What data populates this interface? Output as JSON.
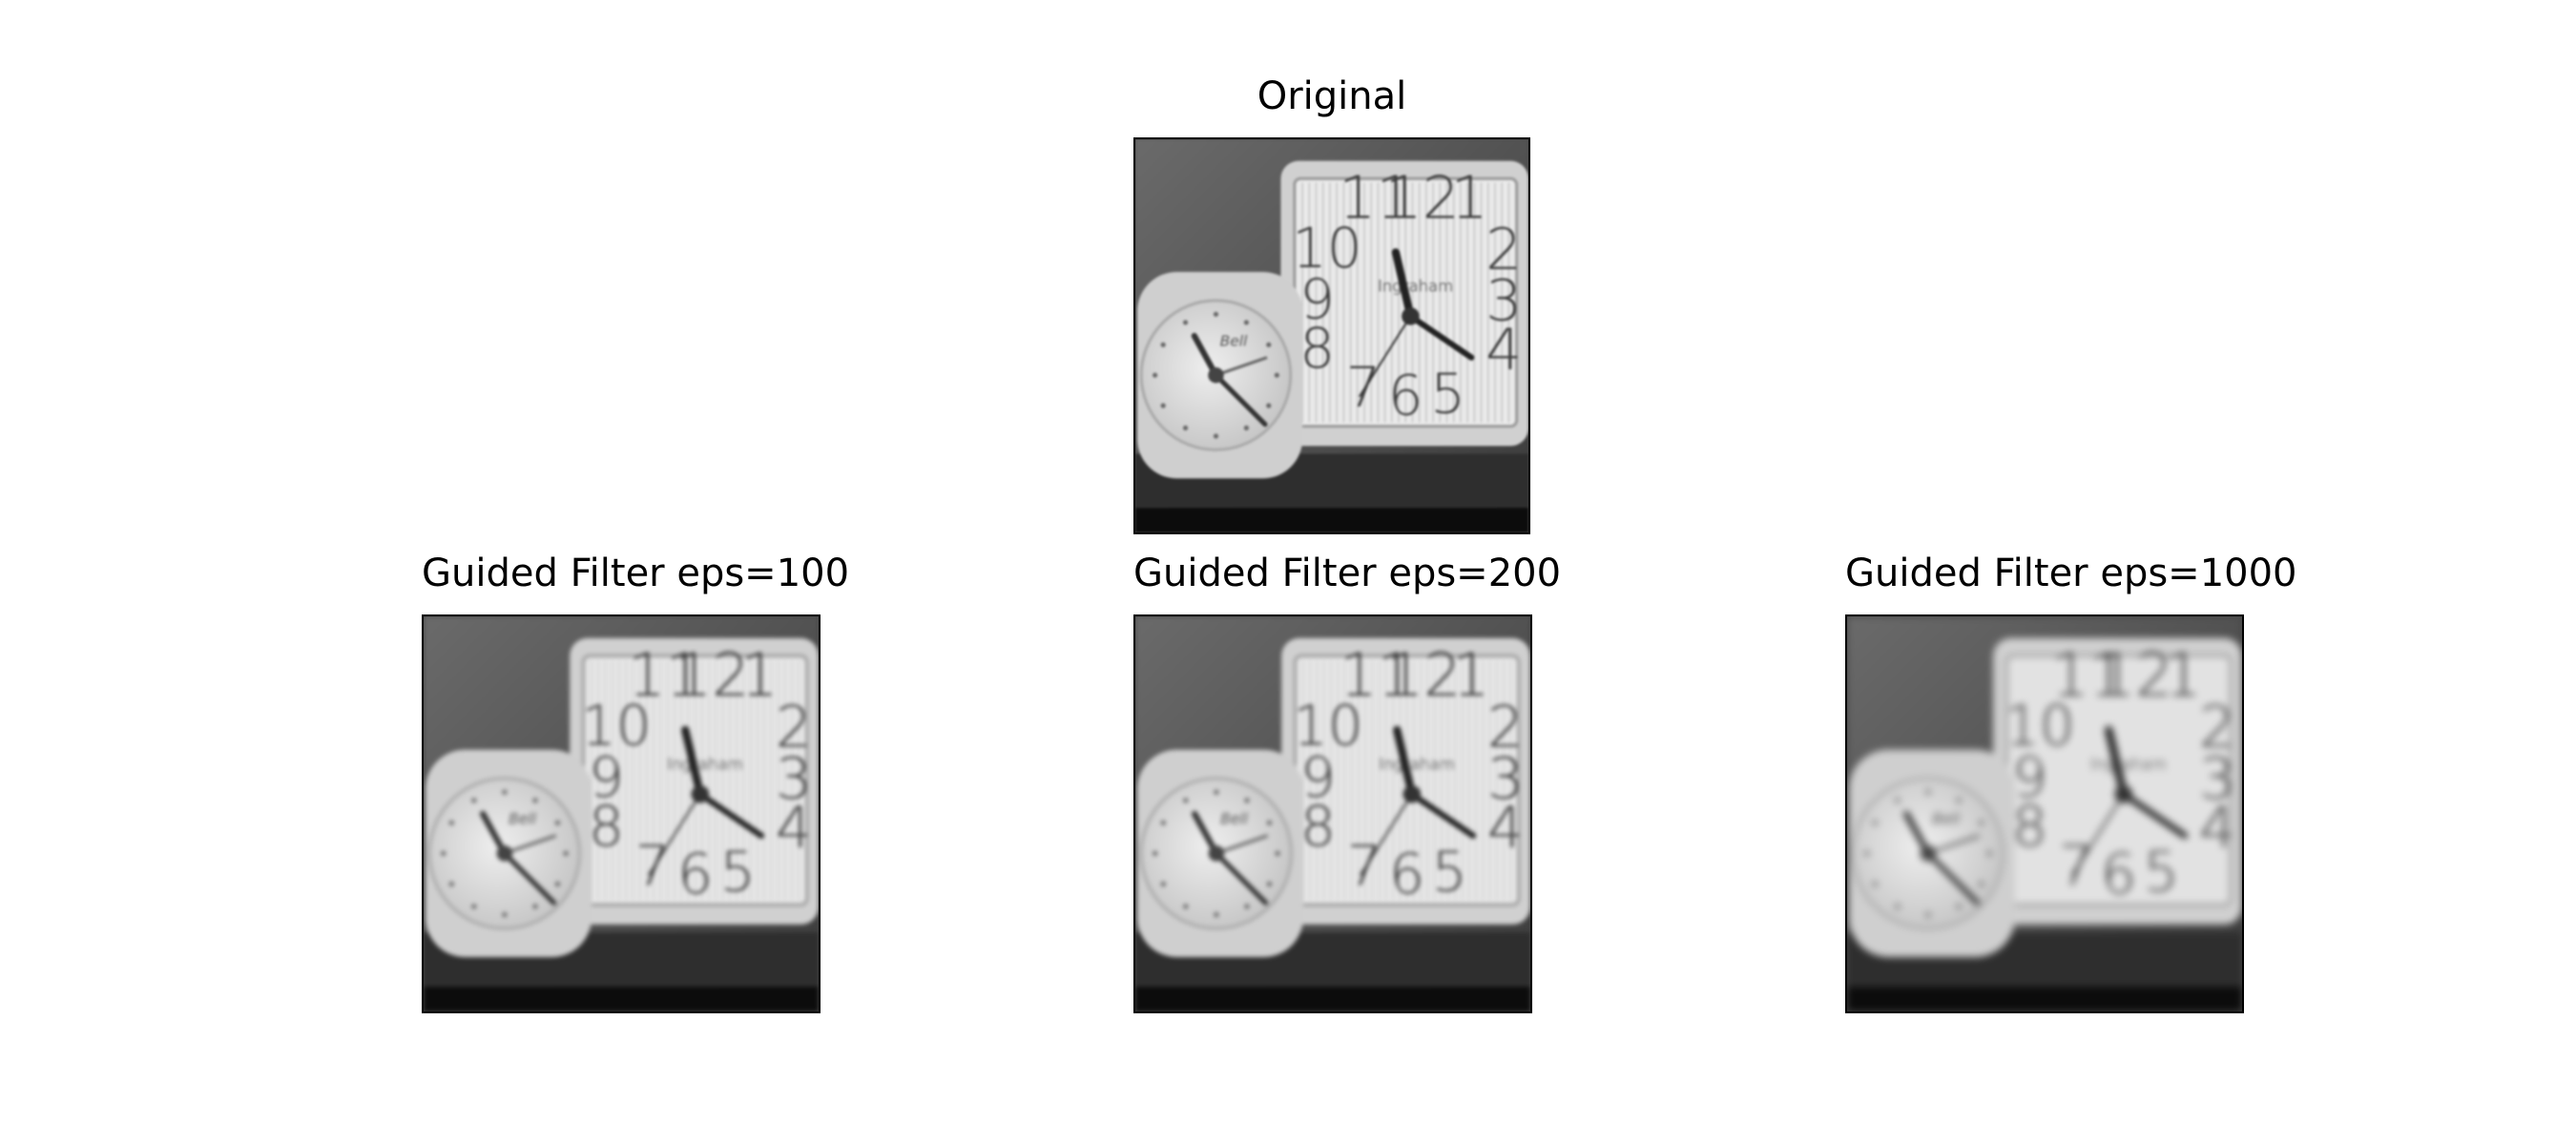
{
  "panels": [
    {
      "title": "Original"
    },
    {
      "title": "Guided Filter eps=100"
    },
    {
      "title": "Guided Filter eps=200"
    },
    {
      "title": "Guided Filter eps=1000"
    }
  ],
  "clock": {
    "numerals": [
      "11",
      "12",
      "1",
      "10",
      "2",
      "9",
      "3",
      "8",
      "4",
      "7",
      "6",
      "5"
    ],
    "brand": "Ingraham",
    "small_brand": "Bell"
  }
}
